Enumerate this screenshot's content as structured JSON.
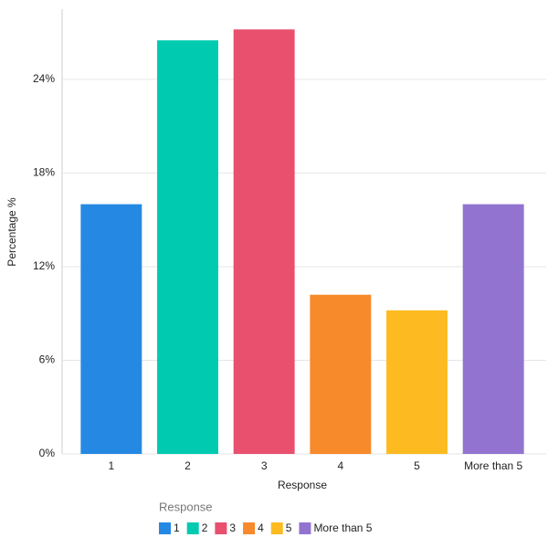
{
  "chart_data": {
    "type": "bar",
    "x_label": "Response",
    "y_label": "Percentage %",
    "legend_title": "Response",
    "categories": [
      "1",
      "2",
      "3",
      "4",
      "5",
      "More than 5"
    ],
    "values": [
      16,
      26.5,
      27.2,
      10.2,
      9.2,
      16
    ],
    "colors": [
      "#2589e3",
      "#00cbb1",
      "#e8506e",
      "#f78a2b",
      "#fdbb21",
      "#9274d0"
    ],
    "ylim": [
      0,
      28.5
    ],
    "yticks": [
      {
        "value": 0,
        "label": "0%"
      },
      {
        "value": 6,
        "label": "6%"
      },
      {
        "value": 12,
        "label": "12%"
      },
      {
        "value": 18,
        "label": "18%"
      },
      {
        "value": 24,
        "label": "24%"
      }
    ],
    "grid": true
  }
}
